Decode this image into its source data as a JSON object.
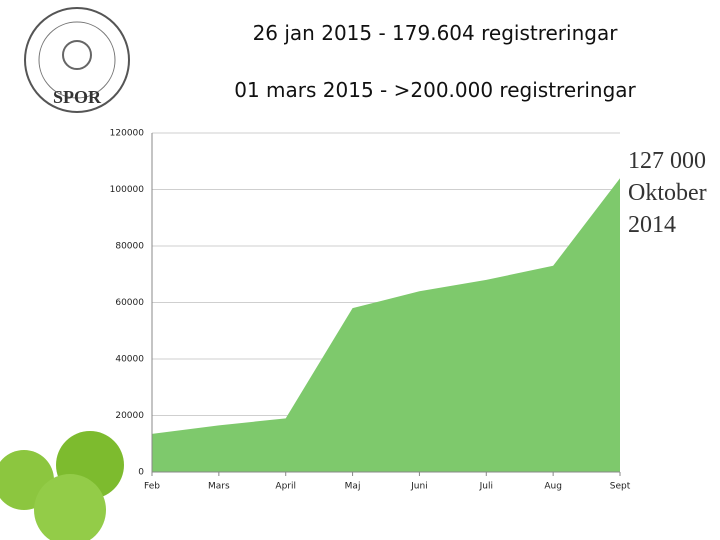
{
  "logo": {
    "text": "SPOR"
  },
  "chart_data": {
    "type": "area",
    "title": "26 jan 2015 - 179.604 registreringar",
    "subtitle": "01 mars 2015 - >200.000 registreringar",
    "annotation": [
      "127 000",
      "Oktober",
      "2014"
    ],
    "categories": [
      "Feb",
      "Mars",
      "April",
      "Maj",
      "Juni",
      "Juli",
      "Aug",
      "Sept"
    ],
    "values": [
      13500,
      16500,
      19000,
      58000,
      64000,
      68000,
      73000,
      104000
    ],
    "color": "#7ec96c",
    "ylim": [
      0,
      120000
    ],
    "yticks": [
      0,
      20000,
      40000,
      60000,
      80000,
      100000,
      120000
    ],
    "grid": true
  }
}
